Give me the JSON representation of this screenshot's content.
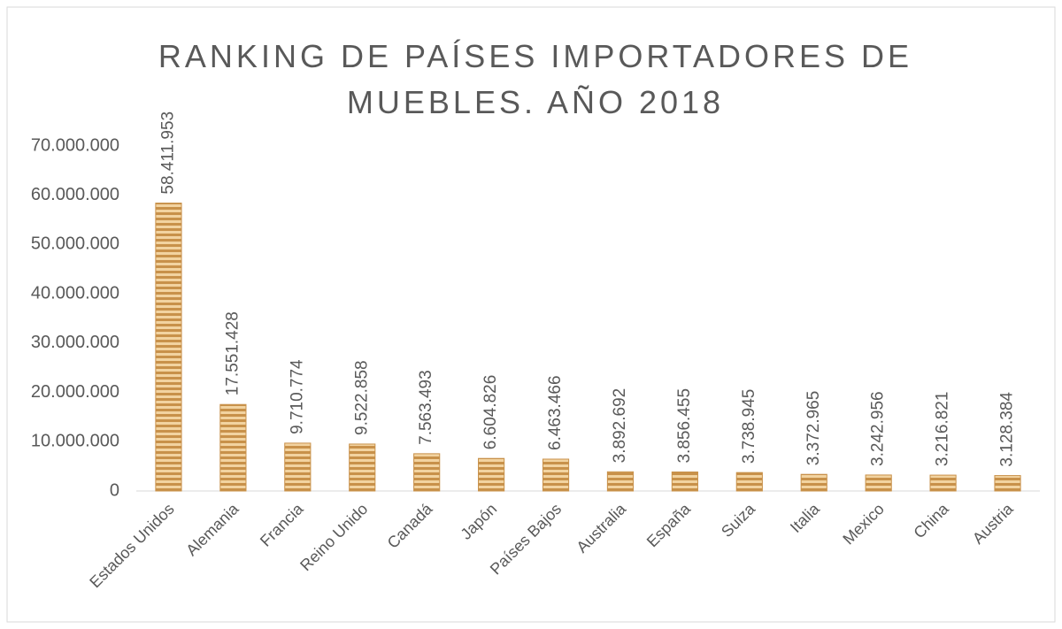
{
  "chart_data": {
    "type": "bar",
    "title": "RANKING DE PAÍSES IMPORTADORES DE MUEBLES. AÑO 2018",
    "categories": [
      "Estados Unidos",
      "Alemania",
      "Francia",
      "Reino Unido",
      "Canadá",
      "Japón",
      "Países Bajos",
      "Australia",
      "España",
      "Suiza",
      "Italia",
      "Mexico",
      "China",
      "Austria"
    ],
    "values": [
      58411953,
      17551428,
      9710774,
      9522858,
      7563493,
      6604826,
      6463466,
      3892692,
      3856455,
      3738945,
      3372965,
      3242956,
      3216821,
      3128384
    ],
    "value_labels": [
      "58.411.953",
      "17.551.428",
      "9.710.774",
      "9.522.858",
      "7.563.493",
      "6.604.826",
      "6.463.466",
      "3.892.692",
      "3.856.455",
      "3.738.945",
      "3.372.965",
      "3.242.956",
      "3.216.821",
      "3.128.384"
    ],
    "color": "#c8914a",
    "ylim": [
      0,
      70000000
    ],
    "yticks": [
      0,
      {
        "value": 10000000,
        "label": "10.000.000"
      },
      {
        "value": 20000000,
        "label": "20.000.000"
      },
      {
        "value": 30000000,
        "label": "30.000.000"
      },
      {
        "value": 40000000,
        "label": "40.000.000"
      },
      {
        "value": 50000000,
        "label": "50.000.000"
      },
      {
        "value": 60000000,
        "label": "60.000.000"
      },
      {
        "value": 70000000,
        "label": "70.000.000"
      }
    ],
    "grid": false
  }
}
